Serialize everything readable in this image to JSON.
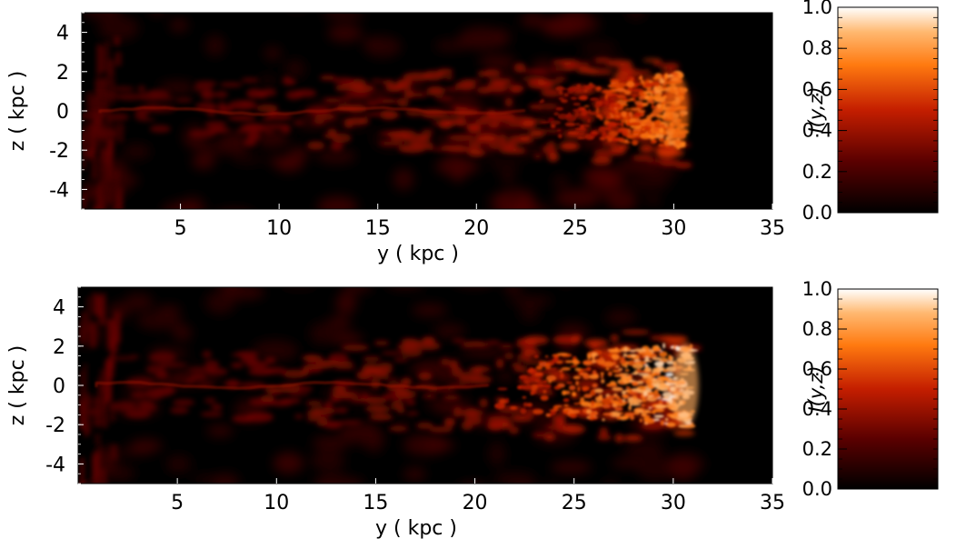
{
  "chart_data": [
    {
      "type": "heatmap",
      "xlabel": "y ( kpc )",
      "ylabel": "z ( kpc )",
      "xlim": [
        0,
        35
      ],
      "ylim": [
        -5,
        5
      ],
      "x_ticks": [
        5,
        10,
        15,
        20,
        25,
        30,
        35
      ],
      "y_ticks": [
        4,
        2,
        0,
        -2,
        -4
      ],
      "colorbar": {
        "title": "I(y,z)",
        "range": [
          0,
          1
        ],
        "ticks": [
          1.0,
          0.8,
          0.6,
          0.4,
          0.2,
          0.0
        ],
        "colormap": [
          "#000000",
          "#8b0000",
          "#e03800",
          "#ff9a30",
          "#ffffff"
        ]
      },
      "plume": {
        "head_y": 30.5,
        "head_z": 0,
        "peak_intensity": 0.8,
        "core_start_y": 23,
        "width_kpc": 2.5
      }
    },
    {
      "type": "heatmap",
      "xlabel": "y ( kpc )",
      "ylabel": "z ( kpc )",
      "xlim": [
        0,
        35
      ],
      "ylim": [
        -5,
        5
      ],
      "x_ticks": [
        5,
        10,
        15,
        20,
        25,
        30,
        35
      ],
      "y_ticks": [
        4,
        2,
        0,
        -2,
        -4
      ],
      "colorbar": {
        "title": "I(y,z)",
        "range": [
          0,
          1
        ],
        "ticks": [
          1.0,
          0.8,
          0.6,
          0.4,
          0.2,
          0.0
        ],
        "colormap": [
          "#000000",
          "#8b0000",
          "#e03800",
          "#ff9a30",
          "#ffffff"
        ]
      },
      "plume": {
        "head_y": 31.0,
        "head_z": 0,
        "peak_intensity": 1.0,
        "core_start_y": 21,
        "width_kpc": 2.8
      }
    }
  ]
}
